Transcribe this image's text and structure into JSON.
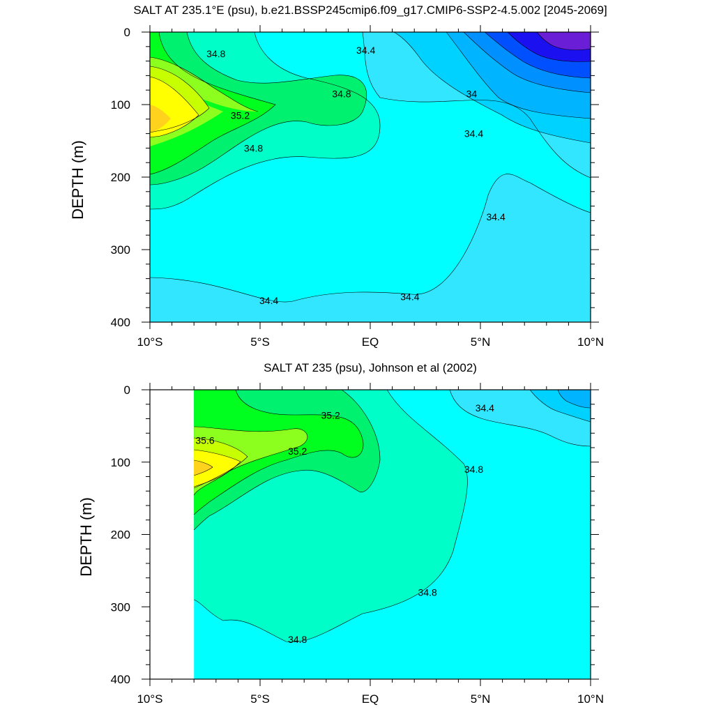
{
  "chart_data": [
    {
      "type": "contour",
      "title": "SALT AT 235.1°E (psu), b.e21.BSSP245cmip6.f09_g17.CMIP6-SSP2-4.5.002 [2045-2069]",
      "xlabel": "",
      "ylabel": "DEPTH (m)",
      "xlim": [
        -10,
        10
      ],
      "ylim": [
        400,
        0
      ],
      "x_ticks": [
        {
          "value": -10,
          "label": "10°S"
        },
        {
          "value": -5,
          "label": "5°S"
        },
        {
          "value": 0,
          "label": "EQ"
        },
        {
          "value": 5,
          "label": "5°N"
        },
        {
          "value": 10,
          "label": "10°N"
        }
      ],
      "y_ticks": [
        {
          "value": 0,
          "label": "0"
        },
        {
          "value": 100,
          "label": "100"
        },
        {
          "value": 200,
          "label": "200"
        },
        {
          "value": 300,
          "label": "300"
        },
        {
          "value": 400,
          "label": "400"
        }
      ],
      "levels": [
        {
          "min": 33.0,
          "max": 33.2,
          "color": "#6a1fd6"
        },
        {
          "min": 33.2,
          "max": 33.4,
          "color": "#1a10f0"
        },
        {
          "min": 33.4,
          "max": 33.6,
          "color": "#0050ff"
        },
        {
          "min": 33.6,
          "max": 33.8,
          "color": "#0090ff"
        },
        {
          "min": 33.8,
          "max": 34.0,
          "color": "#00b4ff"
        },
        {
          "min": 34.0,
          "max": 34.2,
          "color": "#00d2ff"
        },
        {
          "min": 34.2,
          "max": 34.4,
          "color": "#33e6ff"
        },
        {
          "min": 34.4,
          "max": 34.6,
          "color": "#00ffff"
        },
        {
          "min": 34.6,
          "max": 34.8,
          "color": "#00ffc8"
        },
        {
          "min": 34.8,
          "max": 35.0,
          "color": "#00f070"
        },
        {
          "min": 35.0,
          "max": 35.2,
          "color": "#00ff1e"
        },
        {
          "min": 35.2,
          "max": 35.4,
          "color": "#8cff1e"
        },
        {
          "min": 35.4,
          "max": 35.6,
          "color": "#c8ff00"
        },
        {
          "min": 35.6,
          "max": 35.8,
          "color": "#ffff00"
        },
        {
          "min": 35.8,
          "max": 36.0,
          "color": "#ffd21e"
        }
      ],
      "contour_labels": [
        {
          "text": "34.8",
          "lat": -7.0,
          "depth": 30
        },
        {
          "text": "34.8",
          "lat": -1.3,
          "depth": 85
        },
        {
          "text": "35.2",
          "lat": -5.9,
          "depth": 115
        },
        {
          "text": "34.8",
          "lat": -5.3,
          "depth": 160
        },
        {
          "text": "34.4",
          "lat": -0.2,
          "depth": 25
        },
        {
          "text": "34",
          "lat": 4.6,
          "depth": 85
        },
        {
          "text": "34.4",
          "lat": 4.7,
          "depth": 140
        },
        {
          "text": "34.4",
          "lat": 5.7,
          "depth": 255
        },
        {
          "text": "34.4",
          "lat": -4.6,
          "depth": 370
        },
        {
          "text": "34.4",
          "lat": 1.8,
          "depth": 365
        }
      ]
    },
    {
      "type": "contour",
      "title": "SALT AT 235 (psu), Johnson et al (2002)",
      "xlabel": "",
      "ylabel": "DEPTH (m)",
      "xlim": [
        -10,
        10
      ],
      "ylim": [
        400,
        0
      ],
      "data_start_lat": -8,
      "x_ticks": [
        {
          "value": -10,
          "label": "10°S"
        },
        {
          "value": -5,
          "label": "5°S"
        },
        {
          "value": 0,
          "label": "EQ"
        },
        {
          "value": 5,
          "label": "5°N"
        },
        {
          "value": 10,
          "label": "10°N"
        }
      ],
      "y_ticks": [
        {
          "value": 0,
          "label": "0"
        },
        {
          "value": 100,
          "label": "100"
        },
        {
          "value": 200,
          "label": "200"
        },
        {
          "value": 300,
          "label": "300"
        },
        {
          "value": 400,
          "label": "400"
        }
      ],
      "contour_labels": [
        {
          "text": "35.2",
          "lat": -1.8,
          "depth": 35
        },
        {
          "text": "35.6",
          "lat": -7.5,
          "depth": 70
        },
        {
          "text": "35.2",
          "lat": -3.3,
          "depth": 85
        },
        {
          "text": "34.4",
          "lat": 5.2,
          "depth": 25
        },
        {
          "text": "34.8",
          "lat": 4.7,
          "depth": 110
        },
        {
          "text": "34.8",
          "lat": 2.6,
          "depth": 280
        },
        {
          "text": "34.8",
          "lat": -3.3,
          "depth": 345
        }
      ]
    }
  ]
}
